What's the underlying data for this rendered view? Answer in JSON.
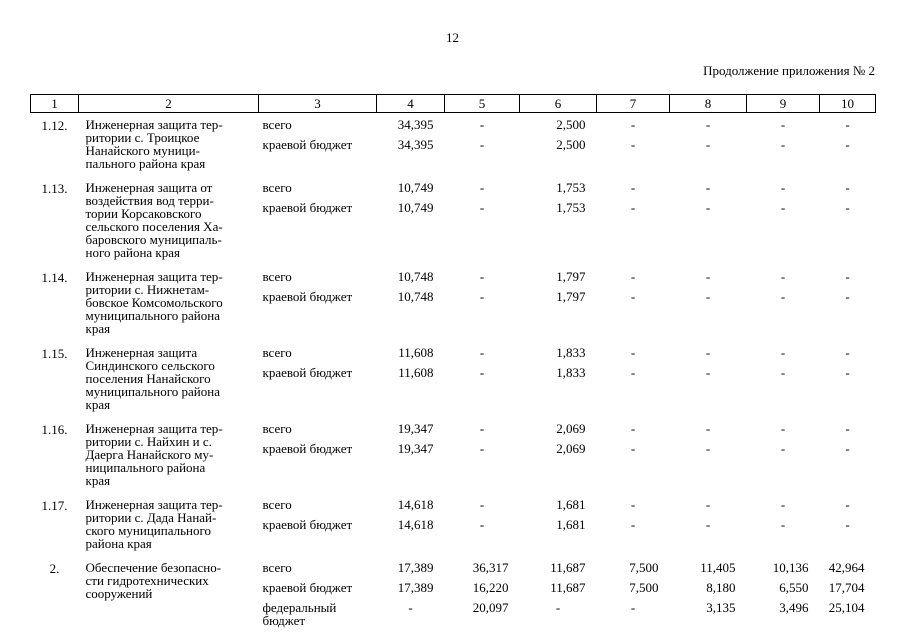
{
  "page": {
    "page_number": "12",
    "continuation_note": "Продолжение приложения № 2"
  },
  "table": {
    "header": [
      "1",
      "2",
      "3",
      "4",
      "5",
      "6",
      "7",
      "8",
      "9",
      "10"
    ],
    "entries": [
      {
        "num": "1.12.",
        "name": "Инженерная защита тер-\nритории с. Троицкое\nНанайского муници-\nпального района края",
        "rows": [
          {
            "type": "всего",
            "values": [
              "34,395",
              "-",
              "2,500",
              "-",
              "-",
              "-",
              "-"
            ]
          },
          {
            "type": "краевой бюджет",
            "values": [
              "34,395",
              "-",
              "2,500",
              "-",
              "-",
              "-",
              "-"
            ]
          }
        ]
      },
      {
        "num": "1.13.",
        "name": "Инженерная защита от\nвоздействия вод терри-\nтории Корсаковского\nсельского поселения Ха-\nбаровского муниципаль-\nного района края",
        "rows": [
          {
            "type": "всего",
            "values": [
              "10,749",
              "-",
              "1,753",
              "-",
              "-",
              "-",
              "-"
            ]
          },
          {
            "type": "краевой бюджет",
            "values": [
              "10,749",
              "-",
              "1,753",
              "-",
              "-",
              "-",
              "-"
            ]
          }
        ]
      },
      {
        "num": "1.14.",
        "name": "Инженерная защита тер-\nритории с. Нижнетам-\nбовское Комсомольского\nмуниципального района\nкрая",
        "rows": [
          {
            "type": "всего",
            "values": [
              "10,748",
              "-",
              "1,797",
              "-",
              "-",
              "-",
              "-"
            ]
          },
          {
            "type": "краевой бюджет",
            "values": [
              "10,748",
              "-",
              "1,797",
              "-",
              "-",
              "-",
              "-"
            ]
          }
        ]
      },
      {
        "num": "1.15.",
        "name": "Инженерная защита\nСиндинского сельского\nпоселения Нанайского\nмуниципального района\nкрая",
        "rows": [
          {
            "type": "всего",
            "values": [
              "11,608",
              "-",
              "1,833",
              "-",
              "-",
              "-",
              "-"
            ]
          },
          {
            "type": "краевой бюджет",
            "values": [
              "11,608",
              "-",
              "1,833",
              "-",
              "-",
              "-",
              "-"
            ]
          }
        ]
      },
      {
        "num": "1.16.",
        "name": "Инженерная защита тер-\nритории с. Найхин и с.\nДаерга Нанайского му-\nниципального района\nкрая",
        "rows": [
          {
            "type": "всего",
            "values": [
              "19,347",
              "-",
              "2,069",
              "-",
              "-",
              "-",
              "-"
            ]
          },
          {
            "type": "краевой бюджет",
            "values": [
              "19,347",
              "-",
              "2,069",
              "-",
              "-",
              "-",
              "-"
            ]
          }
        ]
      },
      {
        "num": "1.17.",
        "name": "Инженерная защита тер-\nритории с. Дада Нанай-\nского муниципального\nрайона края",
        "rows": [
          {
            "type": "всего",
            "values": [
              "14,618",
              "-",
              "1,681",
              "-",
              "-",
              "-",
              "-"
            ]
          },
          {
            "type": "краевой бюджет",
            "values": [
              "14,618",
              "-",
              "1,681",
              "-",
              "-",
              "-",
              "-"
            ]
          }
        ]
      },
      {
        "num": "2.",
        "name": "Обеспечение безопасно-\nсти гидротехнических\nсооружений",
        "rows": [
          {
            "type": "всего",
            "values": [
              "17,389",
              "36,317",
              "11,687",
              "7,500",
              "11,405",
              "10,136",
              "42,964"
            ]
          },
          {
            "type": "краевой бюджет",
            "values": [
              "17,389",
              "16,220",
              "11,687",
              "7,500",
              "8,180",
              "6,550",
              "17,704"
            ]
          },
          {
            "type": "федеральный\nбюджет",
            "values": [
              "-",
              "20,097",
              "-",
              "-",
              "3,135",
              "3,496",
              "25,104"
            ]
          }
        ]
      }
    ]
  }
}
